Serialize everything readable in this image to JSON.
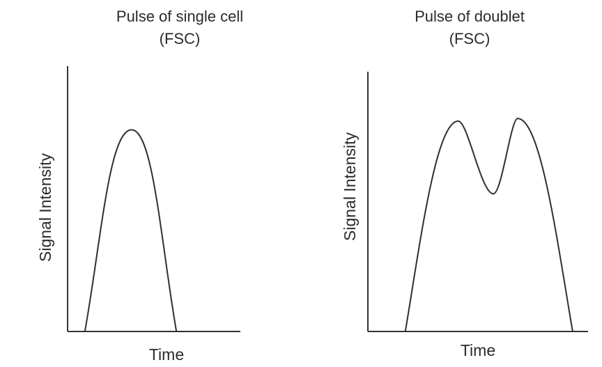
{
  "chart_data": [
    {
      "type": "line",
      "title": "Pulse of single cell",
      "subtitle": "(FSC)",
      "xlabel": "Time",
      "ylabel": "Signal Intensity",
      "grid": false,
      "legend": "none",
      "ticks": "none",
      "xlim": [
        0,
        10
      ],
      "ylim": [
        0,
        10
      ],
      "series": [
        {
          "values": [
            {
              "x": 1.0,
              "y": 0.0
            },
            {
              "x": 3.7,
              "y": 7.6
            },
            {
              "x": 6.3,
              "y": 0.0
            }
          ]
        }
      ]
    },
    {
      "type": "line",
      "title": "Pulse of doublet",
      "subtitle": "(FSC)",
      "xlabel": "Time",
      "ylabel": "Signal Intensity",
      "grid": false,
      "legend": "none",
      "ticks": "none",
      "xlim": [
        0,
        10
      ],
      "ylim": [
        0,
        10
      ],
      "series": [
        {
          "values": [
            {
              "x": 1.7,
              "y": 0.0
            },
            {
              "x": 4.1,
              "y": 8.1
            },
            {
              "x": 5.7,
              "y": 5.3
            },
            {
              "x": 6.8,
              "y": 8.2
            },
            {
              "x": 9.3,
              "y": 0.0
            }
          ]
        }
      ]
    }
  ],
  "colors": {
    "line": "#2f2f2f",
    "axis": "#333333",
    "text": "#2a2a2a",
    "background": "#ffffff"
  }
}
